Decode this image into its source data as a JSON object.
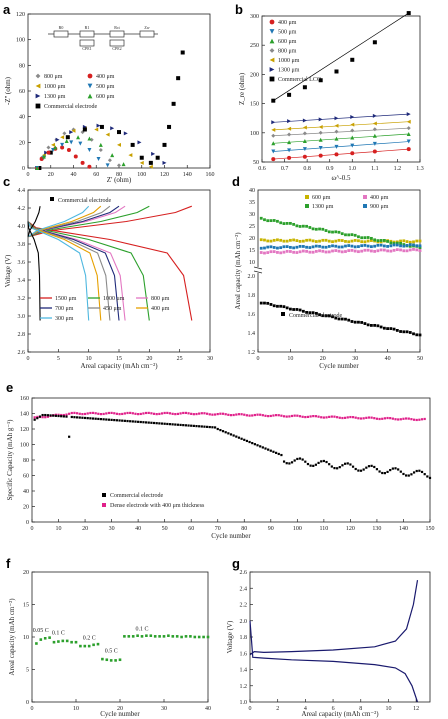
{
  "panels": {
    "a": "a",
    "b": "b",
    "c": "c",
    "d": "d",
    "e": "e",
    "f": "f",
    "g": "g"
  },
  "chart_data": [
    {
      "id": "a",
      "type": "scatter",
      "xlabel": "Z' (ohm)",
      "ylabel": "-Z'' (ohm)",
      "xlim": [
        0,
        160
      ],
      "ylim": [
        0,
        120
      ],
      "xticks": [
        0,
        20,
        40,
        60,
        80,
        100,
        120,
        140,
        160
      ],
      "yticks": [
        0,
        20,
        40,
        60,
        80,
        100,
        120
      ],
      "circuit_labels": [
        "R0",
        "R1",
        "CPE1",
        "Rct",
        "CPE2",
        "Zw"
      ],
      "series": [
        {
          "name": "800 μm",
          "color": "#8a8a8a",
          "marker": "diamond",
          "x": [
            8,
            12,
            18,
            25,
            32,
            40,
            48,
            56,
            64,
            72,
            80
          ],
          "y": [
            0,
            8,
            16,
            22,
            27,
            30,
            28,
            22,
            14,
            6,
            2
          ]
        },
        {
          "name": "1000 μm",
          "color": "#c8a000",
          "marker": "triangle-left",
          "x": [
            8,
            14,
            22,
            30,
            40,
            50,
            60,
            70,
            80,
            90,
            100,
            108
          ],
          "y": [
            0,
            10,
            18,
            24,
            29,
            31,
            30,
            26,
            18,
            10,
            4,
            1
          ]
        },
        {
          "name": "1300 μm",
          "color": "#1f2a7a",
          "marker": "triangle-right",
          "x": [
            8,
            16,
            26,
            38,
            50,
            62,
            74,
            86,
            98,
            110,
            120
          ],
          "y": [
            0,
            12,
            22,
            28,
            32,
            33,
            31,
            27,
            20,
            11,
            4
          ]
        },
        {
          "name": "Commercial electrode",
          "color": "#000000",
          "marker": "square",
          "x": [
            10,
            20,
            35,
            50,
            65,
            80,
            92,
            100,
            108,
            114,
            120,
            124,
            128,
            132,
            136
          ],
          "y": [
            0,
            12,
            24,
            30,
            32,
            28,
            18,
            8,
            4,
            8,
            18,
            32,
            50,
            70,
            90
          ]
        },
        {
          "name": "400 μm",
          "color": "#d62020",
          "marker": "circle",
          "x": [
            8,
            12,
            18,
            24,
            30,
            36,
            42,
            48,
            54
          ],
          "y": [
            0,
            7,
            12,
            15,
            16,
            14,
            9,
            4,
            1
          ]
        },
        {
          "name": "500 μm",
          "color": "#1f77b4",
          "marker": "triangle-down",
          "x": [
            8,
            14,
            22,
            30,
            38,
            46,
            54,
            62,
            70
          ],
          "y": [
            0,
            8,
            14,
            18,
            20,
            19,
            14,
            7,
            2
          ]
        },
        {
          "name": "600 μm",
          "color": "#2ca02c",
          "marker": "triangle-up",
          "x": [
            8,
            14,
            24,
            34,
            44,
            54,
            64,
            74,
            84
          ],
          "y": [
            0,
            9,
            16,
            21,
            24,
            23,
            18,
            10,
            3
          ]
        }
      ]
    },
    {
      "id": "b",
      "type": "scatter",
      "xlabel": "ω^-0.5",
      "ylabel": "Z_re (ohm)",
      "xlim": [
        0.6,
        1.3
      ],
      "ylim": [
        50,
        300
      ],
      "xticks": [
        0.6,
        0.7,
        0.8,
        0.9,
        1.0,
        1.1,
        1.2,
        1.3
      ],
      "yticks": [
        50,
        100,
        150,
        200,
        250,
        300
      ],
      "series": [
        {
          "name": "400 μm",
          "color": "#d62020",
          "marker": "circle",
          "x": [
            0.65,
            0.72,
            0.79,
            0.86,
            0.93,
            1.0,
            1.1,
            1.25
          ],
          "y": [
            55,
            57,
            59,
            61,
            63,
            65,
            68,
            72
          ]
        },
        {
          "name": "500 μm",
          "color": "#1f77b4",
          "marker": "triangle-down",
          "x": [
            0.65,
            0.72,
            0.79,
            0.86,
            0.93,
            1.0,
            1.1,
            1.25
          ],
          "y": [
            68,
            70,
            72,
            74,
            76,
            78,
            81,
            85
          ]
        },
        {
          "name": "600 μm",
          "color": "#2ca02c",
          "marker": "triangle-up",
          "x": [
            0.65,
            0.72,
            0.79,
            0.86,
            0.93,
            1.0,
            1.1,
            1.25
          ],
          "y": [
            82,
            84,
            86,
            88,
            90,
            92,
            95,
            98
          ]
        },
        {
          "name": "800 μm",
          "color": "#8a8a8a",
          "marker": "diamond",
          "x": [
            0.65,
            0.72,
            0.79,
            0.86,
            0.93,
            1.0,
            1.1,
            1.25
          ],
          "y": [
            95,
            97,
            99,
            100,
            102,
            104,
            106,
            108
          ]
        },
        {
          "name": "1000 μm",
          "color": "#c8a000",
          "marker": "triangle-left",
          "x": [
            0.65,
            0.72,
            0.79,
            0.86,
            0.93,
            1.0,
            1.1,
            1.25
          ],
          "y": [
            105,
            107,
            109,
            110,
            112,
            114,
            116,
            119
          ]
        },
        {
          "name": "1300 μm",
          "color": "#1f2a7a",
          "marker": "triangle-right",
          "x": [
            0.65,
            0.72,
            0.79,
            0.86,
            0.93,
            1.0,
            1.1,
            1.25
          ],
          "y": [
            118,
            120,
            121,
            123,
            125,
            127,
            129,
            132
          ]
        },
        {
          "name": "Commercial LCO",
          "color": "#000000",
          "marker": "square",
          "x": [
            0.65,
            0.72,
            0.79,
            0.86,
            0.93,
            1.0,
            1.1,
            1.25
          ],
          "y": [
            155,
            165,
            178,
            190,
            205,
            225,
            255,
            305
          ]
        }
      ]
    },
    {
      "id": "c",
      "type": "line",
      "xlabel": "Areal capacity (mAh cm⁻²)",
      "ylabel": "Voltage (V)",
      "xlim": [
        0,
        30
      ],
      "ylim": [
        2.6,
        4.4
      ],
      "xticks": [
        0,
        5,
        10,
        15,
        20,
        25,
        30
      ],
      "yticks": [
        2.6,
        2.8,
        3.0,
        3.2,
        3.4,
        3.6,
        3.8,
        4.0,
        4.2,
        4.4
      ],
      "annotation": "Commercial electrode",
      "series": [
        {
          "name": "1500 μm",
          "color": "#d62020",
          "capacity": 27
        },
        {
          "name": "1000 μm",
          "color": "#2ca02c",
          "capacity": 20
        },
        {
          "name": "800 μm",
          "color": "#e377c2",
          "capacity": 16
        },
        {
          "name": "700 μm",
          "color": "#1f2a7a",
          "capacity": 15
        },
        {
          "name": "450 μm",
          "color": "#8a8a8a",
          "capacity": 13.5
        },
        {
          "name": "400 μm",
          "color": "#e6a000",
          "capacity": 12
        },
        {
          "name": "300 μm",
          "color": "#4fb8e0",
          "capacity": 10
        },
        {
          "name": "Commercial electrode",
          "color": "#000000",
          "capacity": 2
        }
      ]
    },
    {
      "id": "d",
      "type": "scatter",
      "xlabel": "Cycle number",
      "ylabel": "Areal capacity (mAh cm⁻²)",
      "xlim": [
        0,
        50
      ],
      "xticks": [
        0,
        10,
        20,
        30,
        40,
        50
      ],
      "upper_yticks": [
        10,
        15,
        20,
        25,
        30,
        35,
        40
      ],
      "lower_yticks": [
        1.2,
        1.4,
        1.6,
        1.8,
        2.0
      ],
      "annotation": "Commercial electrode",
      "series": [
        {
          "name": "600 μm",
          "color": "#c8b400",
          "segment": "upper",
          "start": 19,
          "end": 18.5
        },
        {
          "name": "1300 μm",
          "color": "#2ca02c",
          "segment": "upper",
          "start": 28,
          "end": 16
        },
        {
          "name": "400 μm",
          "color": "#e377c2",
          "segment": "upper",
          "start": 14,
          "end": 15
        },
        {
          "name": "900 μm",
          "color": "#1f77b4",
          "segment": "upper",
          "start": 16,
          "end": 17
        },
        {
          "name": "Commercial electrode",
          "color": "#000000",
          "segment": "lower",
          "start": 1.72,
          "end": 1.38
        }
      ]
    },
    {
      "id": "e",
      "type": "scatter",
      "xlabel": "Cycle number",
      "ylabel": "Specific Capacity (mAh g⁻¹)",
      "xlim": [
        0,
        150
      ],
      "ylim": [
        0,
        160
      ],
      "xticks": [
        0,
        10,
        20,
        30,
        40,
        50,
        60,
        70,
        80,
        90,
        100,
        110,
        120,
        130,
        140,
        150
      ],
      "yticks": [
        0,
        20,
        40,
        60,
        80,
        100,
        120,
        140,
        160
      ],
      "series": [
        {
          "name": "Commercial electrode",
          "color": "#000000"
        },
        {
          "name": "Dense electrode with 400 μm thickness",
          "color": "#e0208a"
        }
      ]
    },
    {
      "id": "f",
      "type": "scatter",
      "xlabel": "Cycle number",
      "ylabel": "Areal capacity (mAh cm⁻²)",
      "xlim": [
        0,
        40
      ],
      "ylim": [
        0,
        20
      ],
      "xticks": [
        0,
        10,
        20,
        30,
        40
      ],
      "yticks": [
        0,
        5,
        10,
        15,
        20
      ],
      "annotations": [
        "0.05 C",
        "0.1 C",
        "0.2 C",
        "0.5 C",
        "0.1 C"
      ],
      "series": [
        {
          "name": "",
          "color": "#2ca02c",
          "x": [
            1,
            2,
            3,
            4,
            5,
            6,
            7,
            8,
            9,
            10,
            11,
            12,
            13,
            14,
            15,
            16,
            17,
            18,
            19,
            20,
            21,
            22,
            23,
            24,
            25,
            26,
            27,
            28,
            29,
            30,
            31,
            32,
            33,
            34,
            35,
            36,
            37,
            38,
            39,
            40
          ],
          "y": [
            9.0,
            9.6,
            9.8,
            9.9,
            9.2,
            9.3,
            9.4,
            9.4,
            9.2,
            9.2,
            8.6,
            8.6,
            8.6,
            8.8,
            8.9,
            6.6,
            6.5,
            6.4,
            6.4,
            6.5,
            10.1,
            10.1,
            10.1,
            10.2,
            10.1,
            10.2,
            10.2,
            10.1,
            10.1,
            10.1,
            10.2,
            10.1,
            10.1,
            10.0,
            10.1,
            10.1,
            10.0,
            10.0,
            10.0,
            10.0
          ]
        }
      ]
    },
    {
      "id": "g",
      "type": "line",
      "xlabel": "Areal capacity (mAh cm⁻²)",
      "ylabel": "Voltage (V)",
      "xlim": [
        0,
        13
      ],
      "ylim": [
        1.0,
        2.6
      ],
      "xticks": [
        0,
        2,
        4,
        6,
        8,
        10,
        12
      ],
      "yticks": [
        1.0,
        1.2,
        1.4,
        1.6,
        1.8,
        2.0,
        2.2,
        2.4,
        2.6
      ],
      "series": [
        {
          "name": "",
          "color": "#1a1a6e",
          "x": [
            0,
            0.3,
            1,
            3,
            6,
            9,
            10.5,
            11.3,
            11.8,
            12.1
          ],
          "y": [
            1.58,
            1.62,
            1.61,
            1.62,
            1.64,
            1.68,
            1.75,
            1.9,
            2.2,
            2.5
          ]
        },
        {
          "name": "",
          "color": "#1a1a6e",
          "x": [
            0,
            0.2,
            1,
            3,
            6,
            9,
            10.5,
            11.2,
            11.7,
            12.1
          ],
          "y": [
            2.0,
            1.55,
            1.54,
            1.52,
            1.5,
            1.46,
            1.42,
            1.35,
            1.2,
            1.0
          ]
        }
      ]
    }
  ]
}
